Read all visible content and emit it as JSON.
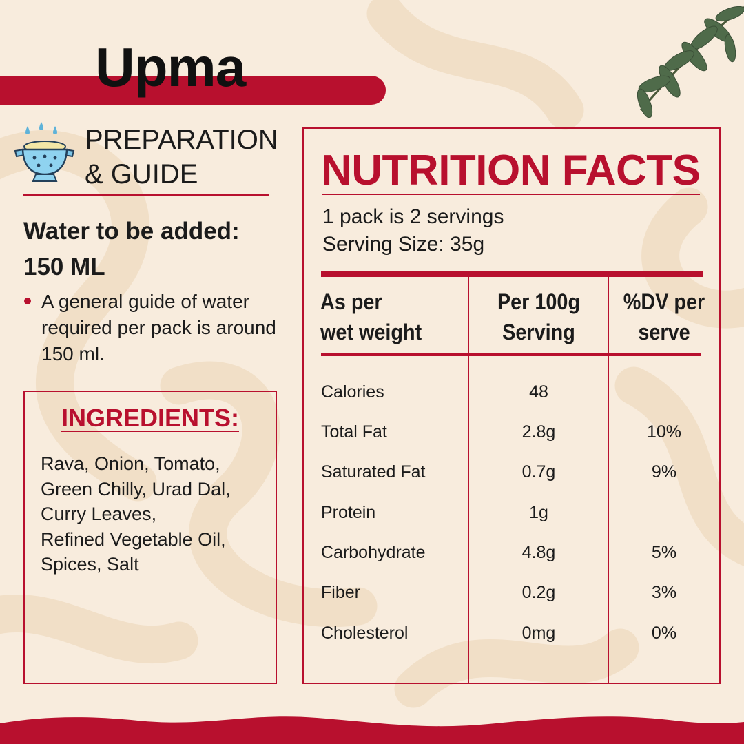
{
  "title": "Upma",
  "preparation": {
    "heading_line1": "PREPARATION",
    "heading_line2": "& GUIDE",
    "water_line1": "Water to be added:",
    "water_line2": "150 ML",
    "note": "A general guide of water required per pack is around 150 ml."
  },
  "ingredients": {
    "title": "INGREDIENTS:",
    "lines": [
      "Rava, Onion, Tomato,",
      "Green Chilly, Urad Dal,",
      "Curry Leaves,",
      "Refined Vegetable Oil,",
      "Spices, Salt"
    ]
  },
  "nutrition": {
    "title": "NUTRITION FACTS",
    "servings": "1 pack is 2 servings",
    "serving_size": "Serving Size: 35g",
    "headers": {
      "col1_line1": "As per",
      "col1_line2": "wet weight",
      "col2_line1": "Per 100g",
      "col2_line2": "Serving",
      "col3_line1": "%DV per",
      "col3_line2": "serve"
    },
    "rows": [
      {
        "name": "Calories",
        "per100": "48",
        "dv": ""
      },
      {
        "name": "Total Fat",
        "per100": "2.8g",
        "dv": "10%"
      },
      {
        "name": "Saturated Fat",
        "per100": "0.7g",
        "dv": "9%"
      },
      {
        "name": "Protein",
        "per100": "1g",
        "dv": ""
      },
      {
        "name": "Carbohydrate",
        "per100": "4.8g",
        "dv": "5%"
      },
      {
        "name": "Fiber",
        "per100": "0.2g",
        "dv": "3%"
      },
      {
        "name": "Cholesterol",
        "per100": "0mg",
        "dv": "0%"
      }
    ]
  },
  "colors": {
    "accent": "#b8102e",
    "background": "#f8ecdd",
    "swirl": "#f2e0c9"
  },
  "icons": [
    "colander-icon",
    "curry-leaves-decoration"
  ]
}
